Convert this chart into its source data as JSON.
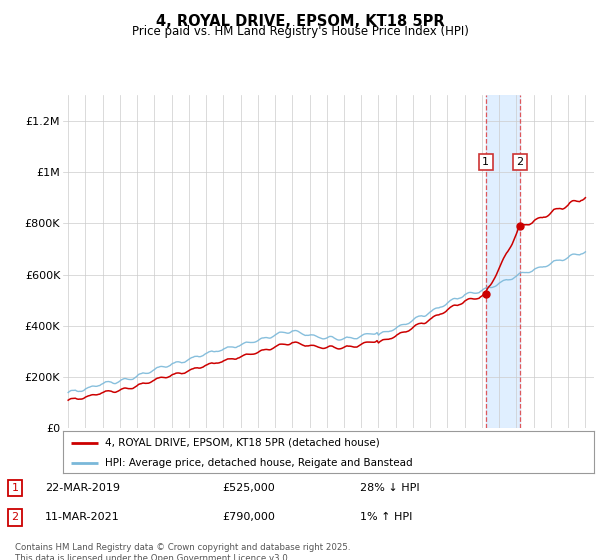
{
  "title": "4, ROYAL DRIVE, EPSOM, KT18 5PR",
  "subtitle": "Price paid vs. HM Land Registry's House Price Index (HPI)",
  "ylabel_ticks": [
    "£0",
    "£200K",
    "£400K",
    "£600K",
    "£800K",
    "£1M",
    "£1.2M"
  ],
  "ylim": [
    0,
    1300000
  ],
  "yticks": [
    0,
    200000,
    400000,
    600000,
    800000,
    1000000,
    1200000
  ],
  "legend_label_red": "4, ROYAL DRIVE, EPSOM, KT18 5PR (detached house)",
  "legend_label_blue": "HPI: Average price, detached house, Reigate and Banstead",
  "annotation1_date": "22-MAR-2019",
  "annotation1_price": "£525,000",
  "annotation1_hpi": "28% ↓ HPI",
  "annotation2_date": "11-MAR-2021",
  "annotation2_price": "£790,000",
  "annotation2_hpi": "1% ↑ HPI",
  "footer": "Contains HM Land Registry data © Crown copyright and database right 2025.\nThis data is licensed under the Open Government Licence v3.0.",
  "sale1_year": 2019.22,
  "sale1_price": 525000,
  "sale2_year": 2021.19,
  "sale2_price": 790000,
  "blue_color": "#7ab8d9",
  "red_color": "#cc0000",
  "shading_color": "#ddeeff",
  "xstart": 1995,
  "xend": 2025
}
